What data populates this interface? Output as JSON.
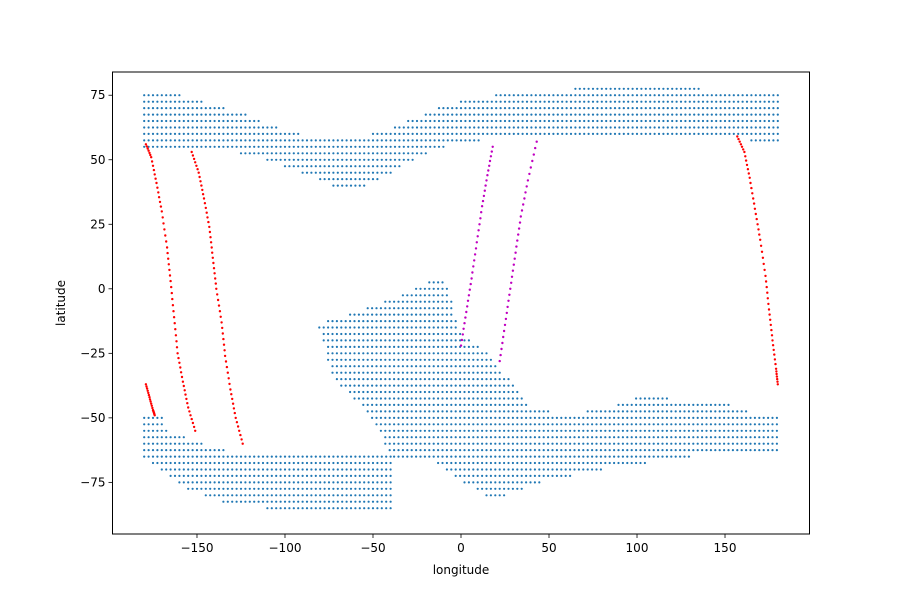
{
  "chart_data": {
    "type": "scatter",
    "title": "",
    "xlabel": "longitude",
    "ylabel": "latitude",
    "xlim": [
      -198,
      198
    ],
    "ylim": [
      -95,
      84
    ],
    "xticks": [
      -150,
      -100,
      -50,
      0,
      50,
      100,
      150
    ],
    "xtick_labels": [
      "−150",
      "−100",
      "−50",
      "0",
      "50",
      "100",
      "150"
    ],
    "yticks": [
      -75,
      -50,
      -25,
      0,
      25,
      50,
      75
    ],
    "ytick_labels": [
      "−75",
      "−50",
      "−25",
      "0",
      "25",
      "50",
      "75"
    ],
    "grid": false,
    "legend": "none",
    "grid_spacing_deg": 2.5,
    "colors": {
      "grid_points": "#1f77b4",
      "track_red": "#ff0000",
      "track_magenta": "#c000c0"
    },
    "regions": [
      {
        "name": "north-band",
        "lon_min": -180,
        "lon_max": 180,
        "lower": [
          [
            -180,
            55
          ],
          [
            -150,
            55
          ],
          [
            -120,
            52
          ],
          [
            -100,
            47
          ],
          [
            -80,
            42
          ],
          [
            -70,
            39
          ],
          [
            -55,
            40
          ],
          [
            -40,
            45
          ],
          [
            -20,
            52
          ],
          [
            0,
            57
          ],
          [
            20,
            58
          ],
          [
            50,
            58
          ],
          [
            100,
            59
          ],
          [
            150,
            58
          ],
          [
            180,
            57
          ]
        ],
        "upper": [
          [
            -180,
            77
          ],
          [
            -160,
            75
          ],
          [
            -140,
            71
          ],
          [
            -120,
            67
          ],
          [
            -100,
            61
          ],
          [
            -85,
            59
          ],
          [
            -60,
            58
          ],
          [
            -45,
            61
          ],
          [
            -30,
            65
          ],
          [
            -10,
            71
          ],
          [
            10,
            74
          ],
          [
            30,
            76
          ],
          [
            60,
            77
          ],
          [
            80,
            79
          ],
          [
            120,
            79
          ],
          [
            140,
            77
          ],
          [
            180,
            77
          ]
        ]
      },
      {
        "name": "south-body",
        "lon_min": -83,
        "lon_max": 180,
        "lower": [
          [
            -83,
            -13
          ],
          [
            -78,
            -21
          ],
          [
            -75,
            -31
          ],
          [
            -70,
            -36
          ],
          [
            -65,
            -40
          ],
          [
            -55,
            -47
          ],
          [
            -45,
            -57
          ],
          [
            -40,
            -65
          ],
          [
            -20,
            -65
          ],
          [
            0,
            -75
          ],
          [
            20,
            -82
          ],
          [
            40,
            -76
          ],
          [
            60,
            -73
          ],
          [
            80,
            -70
          ],
          [
            100,
            -68
          ],
          [
            120,
            -66
          ],
          [
            140,
            -64
          ],
          [
            160,
            -63
          ],
          [
            175,
            -63
          ],
          [
            180,
            -63
          ]
        ],
        "upper": [
          [
            -83,
            -13
          ],
          [
            -70,
            -12
          ],
          [
            -50,
            -6
          ],
          [
            -40,
            -4
          ],
          [
            -30,
            -1
          ],
          [
            -15,
            4
          ],
          [
            -8,
            2
          ],
          [
            0,
            -18
          ],
          [
            10,
            -21
          ],
          [
            20,
            -29
          ],
          [
            30,
            -37
          ],
          [
            40,
            -47
          ],
          [
            60,
            -48
          ],
          [
            80,
            -47
          ],
          [
            100,
            -42
          ],
          [
            110,
            -42
          ],
          [
            125,
            -43
          ],
          [
            150,
            -44
          ],
          [
            160,
            -47
          ],
          [
            170,
            -49
          ],
          [
            180,
            -50
          ]
        ]
      },
      {
        "name": "south-west-lobe",
        "lon_min": -180,
        "lon_max": -40,
        "lower": [
          [
            -180,
            -65
          ],
          [
            -170,
            -70
          ],
          [
            -160,
            -76
          ],
          [
            -150,
            -79
          ],
          [
            -140,
            -81
          ],
          [
            -130,
            -84
          ],
          [
            -110,
            -85
          ],
          [
            -90,
            -86
          ],
          [
            -70,
            -87
          ],
          [
            -50,
            -87
          ],
          [
            -40,
            -86
          ]
        ],
        "upper": [
          [
            -180,
            -49
          ],
          [
            -170,
            -50
          ],
          [
            -165,
            -56
          ],
          [
            -150,
            -59
          ],
          [
            -140,
            -62
          ],
          [
            -120,
            -64
          ],
          [
            -100,
            -65
          ],
          [
            -80,
            -65
          ],
          [
            -60,
            -65
          ],
          [
            -40,
            -65
          ]
        ]
      }
    ],
    "tracks": [
      {
        "color": "red",
        "points": [
          [
            -179,
            56
          ],
          [
            -176,
            51
          ],
          [
            -173,
            41
          ],
          [
            -170,
            30
          ],
          [
            -167,
            16
          ],
          [
            -165,
            3
          ],
          [
            -163,
            -11
          ],
          [
            -161,
            -25
          ],
          [
            -158,
            -36
          ],
          [
            -155,
            -46
          ],
          [
            -151,
            -55
          ]
        ]
      },
      {
        "color": "red",
        "points": [
          [
            -179,
            -37
          ],
          [
            -177,
            -42
          ],
          [
            -175,
            -47
          ],
          [
            -174,
            -49
          ]
        ]
      },
      {
        "color": "red",
        "points": [
          [
            -153,
            53
          ],
          [
            -149,
            45
          ],
          [
            -146,
            35
          ],
          [
            -143,
            24
          ],
          [
            -141,
            12
          ],
          [
            -139,
            0
          ],
          [
            -136,
            -13
          ],
          [
            -134,
            -26
          ],
          [
            -131,
            -39
          ],
          [
            -128,
            -50
          ],
          [
            -124,
            -60
          ]
        ]
      },
      {
        "color": "magenta",
        "points": [
          [
            0,
            -22
          ],
          [
            3,
            -9
          ],
          [
            6,
            4
          ],
          [
            9,
            18
          ],
          [
            12,
            32
          ],
          [
            15,
            44
          ],
          [
            18,
            55
          ]
        ]
      },
      {
        "color": "magenta",
        "points": [
          [
            22,
            -28
          ],
          [
            25,
            -14
          ],
          [
            28,
            0
          ],
          [
            31,
            14
          ],
          [
            34,
            28
          ],
          [
            38,
            42
          ],
          [
            43,
            57
          ]
        ]
      },
      {
        "color": "red",
        "points": [
          [
            157,
            59
          ],
          [
            161,
            53
          ],
          [
            164,
            43
          ],
          [
            167,
            31
          ],
          [
            170,
            19
          ],
          [
            173,
            5
          ],
          [
            175,
            -8
          ],
          [
            177,
            -20
          ],
          [
            179,
            -31
          ],
          [
            180,
            -37
          ]
        ]
      }
    ]
  }
}
